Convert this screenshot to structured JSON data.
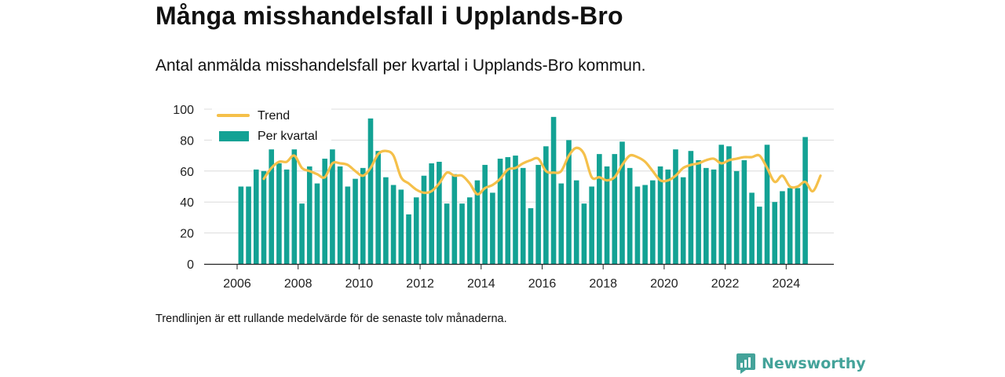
{
  "title": "Många misshandelsfall i Upplands-Bro",
  "subtitle": "Antal anmälda misshandelsfall per kvartal i Upplands-Bro kommun.",
  "note": "Trendlinjen är ett rullande medelvärde för de senaste tolv månaderna.",
  "brand": {
    "name": "Newsworthy",
    "color": "#44a39a"
  },
  "chart_data": {
    "type": "bar",
    "title": "",
    "xlabel": "",
    "ylabel": "",
    "ylim": [
      0,
      100
    ],
    "y_ticks": [
      0,
      20,
      40,
      60,
      80,
      100
    ],
    "x_ticks": [
      "2006",
      "2008",
      "2010",
      "2012",
      "2014",
      "2016",
      "2018",
      "2020",
      "2022",
      "2024"
    ],
    "grid": true,
    "legend_position": "top-left",
    "bar_color": "#13a294",
    "line_color": "#f5c04a",
    "series": [
      {
        "name": "Per kvartal",
        "type": "bar",
        "start": "2006 Q1",
        "values": [
          50,
          50,
          61,
          60,
          74,
          65,
          61,
          74,
          39,
          63,
          52,
          68,
          74,
          63,
          50,
          55,
          62,
          94,
          73,
          56,
          51,
          48,
          32,
          43,
          57,
          65,
          66,
          39,
          58,
          39,
          43,
          54,
          64,
          46,
          68,
          69,
          70,
          62,
          36,
          64,
          76,
          95,
          52,
          80,
          54,
          39,
          50,
          71,
          63,
          71,
          79,
          62,
          50,
          51,
          54,
          63,
          61,
          74,
          56,
          73,
          67,
          62,
          61,
          77,
          76,
          60,
          67,
          46,
          37,
          77,
          40,
          47,
          49,
          49,
          82
        ]
      },
      {
        "name": "Trend",
        "type": "line",
        "start": "2006 Q4",
        "values": [
          55,
          62,
          66,
          66,
          70,
          62,
          60,
          58,
          56,
          65,
          65,
          64,
          60,
          57,
          62,
          71,
          73,
          70,
          56,
          52,
          48,
          46,
          47,
          52,
          59,
          57,
          57,
          52,
          45,
          49,
          51,
          55,
          61,
          62,
          65,
          67,
          68,
          60,
          59,
          60,
          70,
          75,
          71,
          56,
          56,
          54,
          56,
          64,
          70,
          69,
          66,
          60,
          54,
          54,
          57,
          62,
          64,
          65,
          67,
          68,
          65,
          67,
          68,
          69,
          69,
          70,
          62,
          53,
          57,
          50,
          50,
          53,
          47,
          57
        ]
      }
    ]
  }
}
